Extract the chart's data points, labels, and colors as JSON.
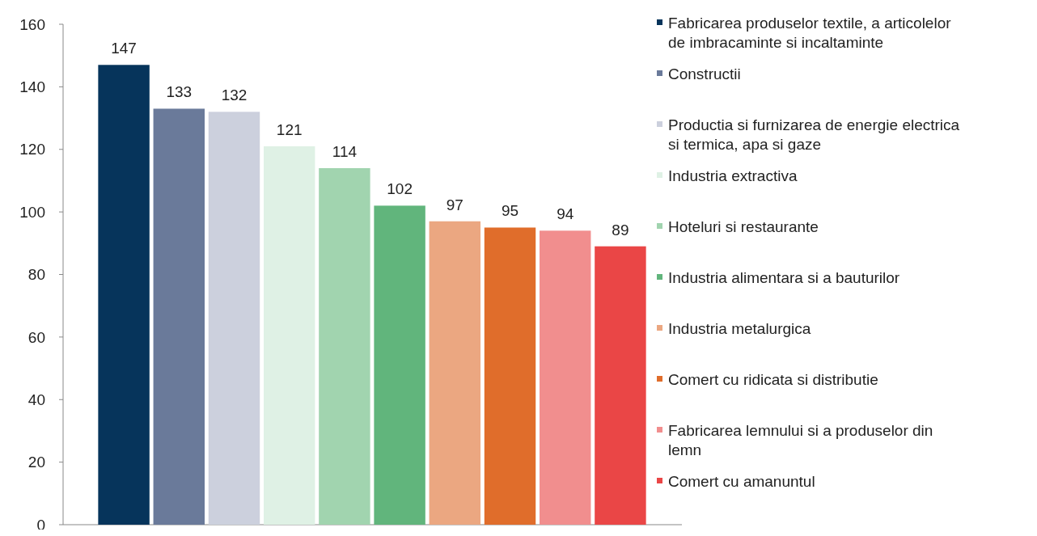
{
  "chart_data": {
    "type": "bar",
    "categories": [
      null,
      null,
      null,
      null,
      null,
      null,
      null,
      null,
      null,
      null
    ],
    "series": [
      {
        "name": "Fabricarea produselor textile, a articolelor de imbracaminte si incaltaminte",
        "color": "#06345b",
        "values": [
          147,
          null,
          null,
          null,
          null,
          null,
          null,
          null,
          null,
          null
        ]
      },
      {
        "name": "Constructii",
        "color": "#6a7a9a",
        "values": [
          null,
          133,
          null,
          null,
          null,
          null,
          null,
          null,
          null,
          null
        ]
      },
      {
        "name": "Productia si furnizarea de energie electrica si termica, apa si gaze",
        "color": "#ccd0dd",
        "values": [
          null,
          null,
          132,
          null,
          null,
          null,
          null,
          null,
          null,
          null
        ]
      },
      {
        "name": "Industria extractiva",
        "color": "#dff1e5",
        "values": [
          null,
          null,
          null,
          121,
          null,
          null,
          null,
          null,
          null,
          null
        ]
      },
      {
        "name": "Hoteluri si restaurante",
        "color": "#a1d4af",
        "values": [
          null,
          null,
          null,
          null,
          114,
          null,
          null,
          null,
          null,
          null
        ]
      },
      {
        "name": "Industria alimentara si a bauturilor",
        "color": "#61b57c",
        "values": [
          null,
          null,
          null,
          null,
          null,
          102,
          null,
          null,
          null,
          null
        ]
      },
      {
        "name": "Industria metalurgica",
        "color": "#eba781",
        "values": [
          null,
          null,
          null,
          null,
          null,
          null,
          97,
          null,
          null,
          null
        ]
      },
      {
        "name": "Comert cu ridicata si distributie",
        "color": "#e06d2b",
        "values": [
          null,
          null,
          null,
          null,
          null,
          null,
          null,
          95,
          null,
          null
        ]
      },
      {
        "name": "Fabricarea lemnului si a produselor din lemn",
        "color": "#f18e8e",
        "values": [
          null,
          null,
          null,
          null,
          null,
          null,
          null,
          null,
          94,
          null
        ]
      },
      {
        "name": "Comert cu amanuntul",
        "color": "#ea4646",
        "values": [
          null,
          null,
          null,
          null,
          null,
          null,
          null,
          null,
          null,
          89
        ]
      }
    ],
    "ylim": [
      0,
      160
    ],
    "yticks": [
      0,
      20,
      40,
      60,
      80,
      100,
      120,
      140,
      160
    ],
    "data_labels": true,
    "legend": "right",
    "grid": false
  }
}
